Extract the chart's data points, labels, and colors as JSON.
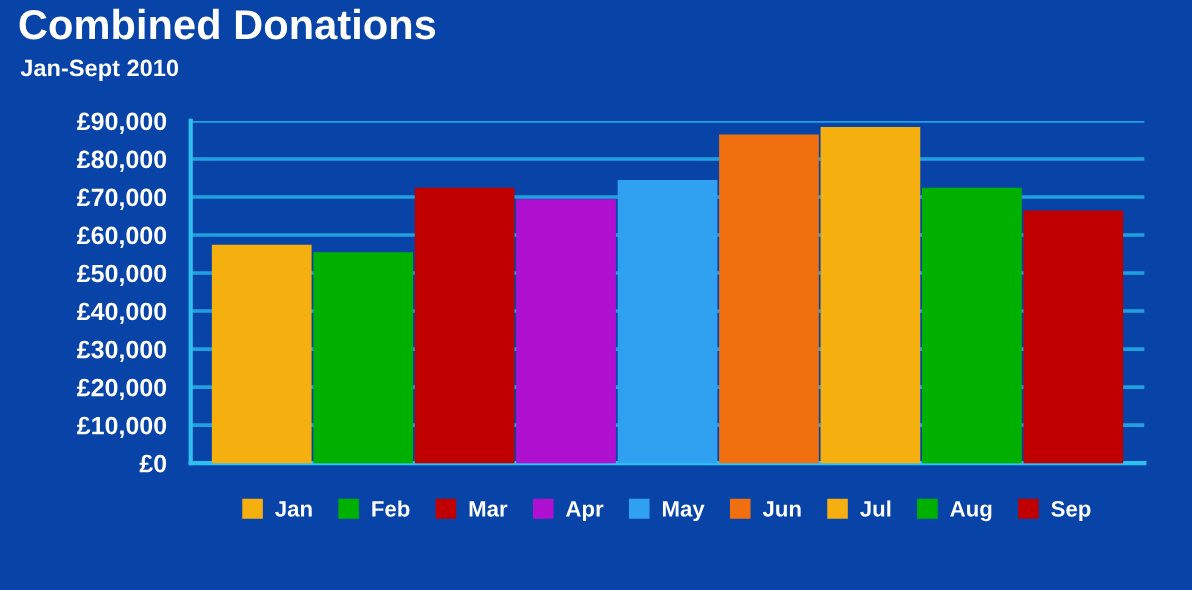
{
  "chart_data": {
    "type": "bar",
    "title": "Combined Donations",
    "subtitle": "Jan-Sept 2010",
    "categories": [
      null,
      null,
      null,
      null,
      null,
      null,
      null,
      null,
      null
    ],
    "stacked": true,
    "series": [
      {
        "name": "Jan",
        "color": "#f5b010",
        "values": [
          57000,
          null,
          null,
          null,
          null,
          null,
          null,
          null,
          null
        ]
      },
      {
        "name": "Feb",
        "color": "#00b000",
        "values": [
          null,
          55000,
          null,
          null,
          null,
          null,
          null,
          null,
          null
        ]
      },
      {
        "name": "Mar",
        "color": "#c00000",
        "values": [
          null,
          null,
          72000,
          null,
          null,
          null,
          null,
          null,
          null
        ]
      },
      {
        "name": "Apr",
        "color": "#b010d0",
        "values": [
          null,
          null,
          null,
          69000,
          null,
          null,
          null,
          null,
          null
        ]
      },
      {
        "name": "May",
        "color": "#30a0f0",
        "values": [
          null,
          null,
          null,
          null,
          74000,
          null,
          null,
          null,
          null
        ]
      },
      {
        "name": "Jun",
        "color": "#f07010",
        "values": [
          null,
          null,
          null,
          null,
          null,
          86000,
          null,
          null,
          null
        ]
      },
      {
        "name": "Jul",
        "color": "#f5b010",
        "values": [
          null,
          null,
          null,
          null,
          null,
          null,
          88000,
          null,
          null
        ]
      },
      {
        "name": "Aug",
        "color": "#00b000",
        "values": [
          null,
          null,
          null,
          null,
          null,
          null,
          null,
          72000,
          null
        ]
      },
      {
        "name": "Sep",
        "color": "#c00000",
        "values": [
          null,
          null,
          null,
          null,
          null,
          null,
          null,
          null,
          66000
        ]
      }
    ],
    "ylim": [
      0,
      90000
    ],
    "yticks": [
      {
        "value": 0,
        "label": "£0"
      },
      {
        "value": 10000,
        "label": "£10,000"
      },
      {
        "value": 20000,
        "label": "£20,000"
      },
      {
        "value": 30000,
        "label": "£30,000"
      },
      {
        "value": 40000,
        "label": "£40,000"
      },
      {
        "value": 50000,
        "label": "£50,000"
      },
      {
        "value": 60000,
        "label": "£60,000"
      },
      {
        "value": 70000,
        "label": "£70,000"
      },
      {
        "value": 80000,
        "label": "£80,000"
      },
      {
        "value": 90000,
        "label": "£90,000"
      }
    ],
    "grid": "y",
    "legend": "bottom",
    "tick_labels": "y"
  }
}
